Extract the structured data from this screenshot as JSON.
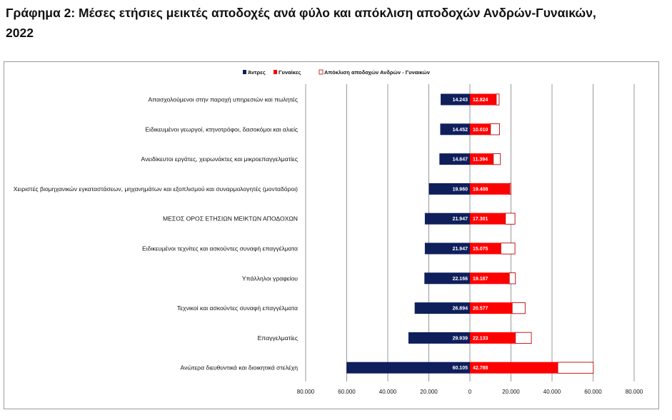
{
  "page": {
    "title_line1": "Γράφημα 2: Μέσες ετήσιες μεικτές αποδοχές ανά φύλο και απόκλιση αποδοχών Ανδρών-Γυναικών,",
    "title_line2": "2022"
  },
  "colors": {
    "men": "#0f1f5c",
    "women": "#ff0000",
    "gap_border": "#c00000",
    "grid": "#7f7f7f"
  },
  "chart_data": {
    "type": "bar",
    "orientation": "horizontal",
    "layout": "butterfly",
    "categories": [
      "Απασχολούμενοι στην παροχή υπηρεσιών και πωλητές",
      "Ειδικευμένοι γεωργοί, κτηνοτρόφοι, δασοκόμοι και αλιείς",
      "Ανειδίκευτοι εργάτες, χειρωνάκτες και μικροεπαγγελματίες",
      "Χειριστές βιομηχανικών εγκαταστάσεων, μηχανημάτων και εξοπλισμού και συναρμολογητές (μονταδόροι)",
      "ΜΕΣΟΣ ΟΡΟΣ ΕΤΗΣΙΩΝ ΜΕΙΚΤΩΝ ΑΠΟΔΟΧΩΝ",
      "Ειδικευμένοι τεχνίτες και ασκούντες συναφή επαγγέλματα",
      "Υπάλληλοι γραφείου",
      "Τεχνικοί και ασκούντες συναφή επαγγέλματα",
      "Επαγγελματίες",
      "Ανώτερα διευθυντικά και διοικητικά στελέχη"
    ],
    "series": [
      {
        "name": "Άντρες",
        "values": [
          14243,
          14452,
          14847,
          19960,
          21947,
          21947,
          22166,
          26894,
          29939,
          60105
        ],
        "labels": [
          "14.243",
          "14.452",
          "14.847",
          "19.960",
          "21.947",
          "21.947",
          "22.166",
          "26.894",
          "29.939",
          "60.105"
        ]
      },
      {
        "name": "Γυναίκες",
        "values": [
          12824,
          10010,
          11394,
          19408,
          17301,
          15075,
          19187,
          20577,
          22133,
          42788
        ],
        "labels": [
          "12.824",
          "10.010",
          "11.394",
          "19.408",
          "17.301",
          "15.075",
          "19.187",
          "20.577",
          "22.133",
          "42.788"
        ]
      },
      {
        "name": "Απόκλιση  αποδοχών Ανδρών - Γυναικών",
        "values": [
          1419,
          4442,
          3453,
          552,
          4646,
          6872,
          2979,
          6317,
          7806,
          17317
        ]
      }
    ],
    "xlim": [
      -80000,
      80000
    ],
    "xticks": [
      -80000,
      -60000,
      -40000,
      -20000,
      0,
      20000,
      40000,
      60000,
      80000
    ],
    "xtick_labels": [
      "80.000",
      "60.000",
      "40.000",
      "20.000",
      "0",
      "20.000",
      "40.000",
      "60.000",
      "80.000"
    ],
    "grid": "vertical",
    "legend_position": "top-center"
  }
}
